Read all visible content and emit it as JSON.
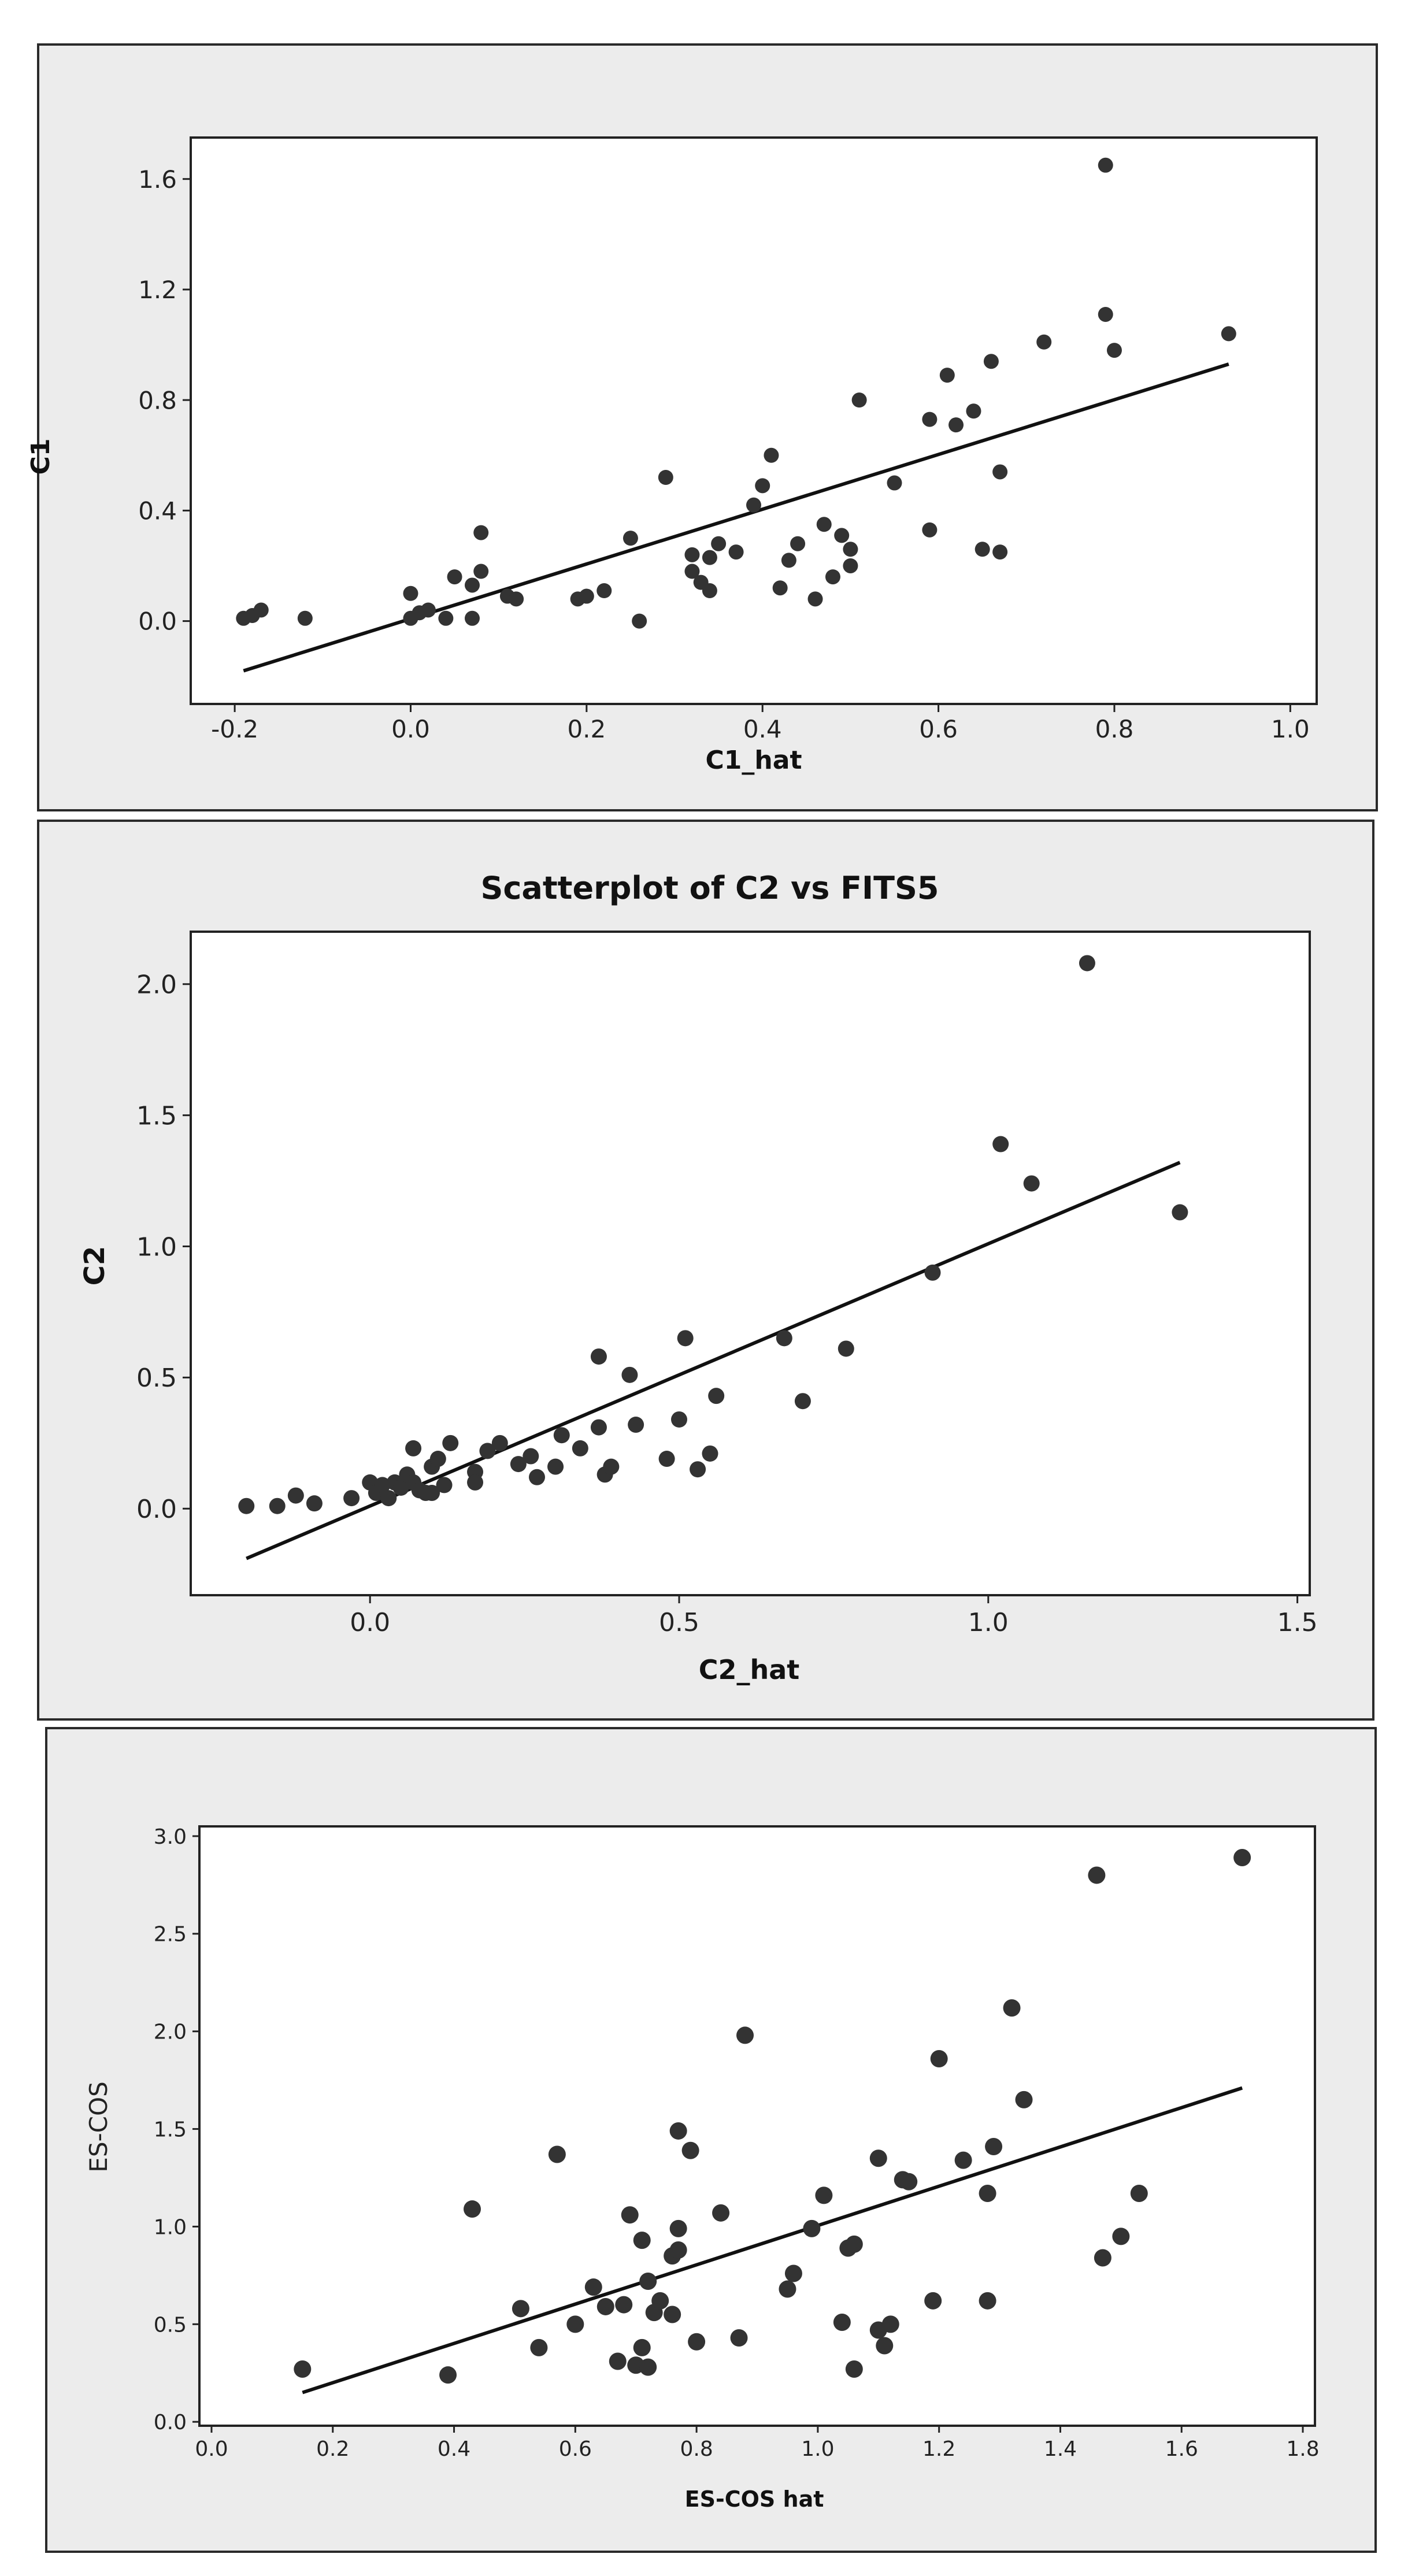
{
  "colors": {
    "panel_bg": "#ececec",
    "panel_border": "#2a2a2a",
    "plot_bg": "#ffffff",
    "point": "#333333",
    "line": "#111111"
  },
  "chart_data": [
    {
      "type": "scatter",
      "title": "",
      "xlabel": "C1_hat",
      "ylabel": "C1",
      "xlim": [
        -0.25,
        1.03
      ],
      "ylim": [
        -0.3,
        1.75
      ],
      "xticks": [
        -0.2,
        0.0,
        0.2,
        0.4,
        0.6,
        0.8,
        1.0
      ],
      "xtick_labels": [
        "-0.2",
        "0.0",
        "0.2",
        "0.4",
        "0.6",
        "0.8",
        "1.0"
      ],
      "yticks": [
        0.0,
        0.4,
        0.8,
        1.2,
        1.6
      ],
      "ytick_labels": [
        "0.0",
        "0.4",
        "0.8",
        "1.2",
        "1.6"
      ],
      "grid": false,
      "fit_line": {
        "x": [
          -0.19,
          0.93
        ],
        "y": [
          -0.18,
          0.93
        ]
      },
      "points": [
        [
          -0.19,
          0.01
        ],
        [
          -0.18,
          0.02
        ],
        [
          -0.17,
          0.04
        ],
        [
          -0.12,
          0.01
        ],
        [
          0.0,
          0.01
        ],
        [
          0.0,
          0.1
        ],
        [
          0.01,
          0.03
        ],
        [
          0.02,
          0.04
        ],
        [
          0.04,
          0.01
        ],
        [
          0.05,
          0.16
        ],
        [
          0.07,
          0.13
        ],
        [
          0.07,
          0.01
        ],
        [
          0.08,
          0.18
        ],
        [
          0.08,
          0.32
        ],
        [
          0.11,
          0.09
        ],
        [
          0.12,
          0.08
        ],
        [
          0.19,
          0.08
        ],
        [
          0.2,
          0.09
        ],
        [
          0.22,
          0.11
        ],
        [
          0.25,
          0.3
        ],
        [
          0.26,
          0.0
        ],
        [
          0.29,
          0.52
        ],
        [
          0.32,
          0.18
        ],
        [
          0.32,
          0.24
        ],
        [
          0.33,
          0.14
        ],
        [
          0.34,
          0.11
        ],
        [
          0.34,
          0.23
        ],
        [
          0.35,
          0.28
        ],
        [
          0.37,
          0.25
        ],
        [
          0.39,
          0.42
        ],
        [
          0.4,
          0.49
        ],
        [
          0.41,
          0.6
        ],
        [
          0.42,
          0.12
        ],
        [
          0.43,
          0.22
        ],
        [
          0.44,
          0.28
        ],
        [
          0.46,
          0.08
        ],
        [
          0.47,
          0.35
        ],
        [
          0.48,
          0.16
        ],
        [
          0.49,
          0.31
        ],
        [
          0.5,
          0.26
        ],
        [
          0.5,
          0.2
        ],
        [
          0.51,
          0.8
        ],
        [
          0.55,
          0.5
        ],
        [
          0.59,
          0.73
        ],
        [
          0.59,
          0.33
        ],
        [
          0.61,
          0.89
        ],
        [
          0.62,
          0.71
        ],
        [
          0.64,
          0.76
        ],
        [
          0.65,
          0.26
        ],
        [
          0.66,
          0.94
        ],
        [
          0.67,
          0.25
        ],
        [
          0.67,
          0.54
        ],
        [
          0.72,
          1.01
        ],
        [
          0.79,
          1.65
        ],
        [
          0.79,
          1.11
        ],
        [
          0.8,
          0.98
        ],
        [
          0.93,
          1.04
        ]
      ]
    },
    {
      "type": "scatter",
      "title": "Scatterplot of C2 vs FITS5",
      "xlabel": "C2_hat",
      "ylabel": "C2",
      "xlim": [
        -0.29,
        1.52
      ],
      "ylim": [
        -0.33,
        2.2
      ],
      "xticks": [
        0.0,
        0.5,
        1.0,
        1.5
      ],
      "xtick_labels": [
        "0.0",
        "0.5",
        "1.0",
        "1.5"
      ],
      "yticks": [
        0.0,
        0.5,
        1.0,
        1.5,
        2.0
      ],
      "ytick_labels": [
        "0.0",
        "0.5",
        "1.0",
        "1.5",
        "2.0"
      ],
      "grid": false,
      "fit_line": {
        "x": [
          -0.2,
          1.31
        ],
        "y": [
          -0.19,
          1.32
        ]
      },
      "points": [
        [
          -0.2,
          0.01
        ],
        [
          -0.15,
          0.01
        ],
        [
          -0.12,
          0.05
        ],
        [
          -0.09,
          0.02
        ],
        [
          -0.03,
          0.04
        ],
        [
          0.0,
          0.1
        ],
        [
          0.01,
          0.06
        ],
        [
          0.02,
          0.09
        ],
        [
          0.03,
          0.04
        ],
        [
          0.04,
          0.1
        ],
        [
          0.05,
          0.08
        ],
        [
          0.06,
          0.13
        ],
        [
          0.07,
          0.1
        ],
        [
          0.07,
          0.23
        ],
        [
          0.08,
          0.07
        ],
        [
          0.09,
          0.06
        ],
        [
          0.1,
          0.16
        ],
        [
          0.1,
          0.06
        ],
        [
          0.11,
          0.19
        ],
        [
          0.12,
          0.09
        ],
        [
          0.13,
          0.25
        ],
        [
          0.17,
          0.14
        ],
        [
          0.17,
          0.1
        ],
        [
          0.19,
          0.22
        ],
        [
          0.21,
          0.25
        ],
        [
          0.24,
          0.17
        ],
        [
          0.26,
          0.2
        ],
        [
          0.27,
          0.12
        ],
        [
          0.3,
          0.16
        ],
        [
          0.31,
          0.28
        ],
        [
          0.34,
          0.23
        ],
        [
          0.37,
          0.58
        ],
        [
          0.37,
          0.31
        ],
        [
          0.38,
          0.13
        ],
        [
          0.39,
          0.16
        ],
        [
          0.42,
          0.51
        ],
        [
          0.43,
          0.32
        ],
        [
          0.48,
          0.19
        ],
        [
          0.5,
          0.34
        ],
        [
          0.51,
          0.65
        ],
        [
          0.53,
          0.15
        ],
        [
          0.55,
          0.21
        ],
        [
          0.56,
          0.43
        ],
        [
          0.67,
          0.65
        ],
        [
          0.7,
          0.41
        ],
        [
          0.77,
          0.61
        ],
        [
          0.91,
          0.9
        ],
        [
          1.02,
          1.39
        ],
        [
          1.07,
          1.24
        ],
        [
          1.16,
          2.08
        ],
        [
          1.31,
          1.13
        ]
      ]
    },
    {
      "type": "scatter",
      "title": "",
      "xlabel": "ES-COS hat",
      "ylabel": "ES-COS",
      "xlim": [
        -0.02,
        1.82
      ],
      "ylim": [
        -0.02,
        3.05
      ],
      "xticks": [
        0.0,
        0.2,
        0.4,
        0.6,
        0.8,
        1.0,
        1.2,
        1.4,
        1.6,
        1.8
      ],
      "xtick_labels": [
        "0.0",
        "0.2",
        "0.4",
        "0.6",
        "0.8",
        "1.0",
        "1.2",
        "1.4",
        "1.6",
        "1.8"
      ],
      "yticks": [
        0.0,
        0.5,
        1.0,
        1.5,
        2.0,
        2.5,
        3.0
      ],
      "ytick_labels": [
        "0.0",
        "0.5",
        "1.0",
        "1.5",
        "2.0",
        "2.5",
        "3.0"
      ],
      "grid": false,
      "fit_line": {
        "x": [
          0.15,
          1.7
        ],
        "y": [
          0.15,
          1.71
        ]
      },
      "points": [
        [
          0.15,
          0.27
        ],
        [
          0.39,
          0.24
        ],
        [
          0.43,
          1.09
        ],
        [
          0.51,
          0.58
        ],
        [
          0.54,
          0.38
        ],
        [
          0.57,
          1.37
        ],
        [
          0.6,
          0.5
        ],
        [
          0.63,
          0.69
        ],
        [
          0.65,
          0.59
        ],
        [
          0.67,
          0.31
        ],
        [
          0.68,
          0.6
        ],
        [
          0.69,
          1.06
        ],
        [
          0.7,
          0.29
        ],
        [
          0.71,
          0.38
        ],
        [
          0.71,
          0.93
        ],
        [
          0.72,
          0.72
        ],
        [
          0.72,
          0.28
        ],
        [
          0.73,
          0.56
        ],
        [
          0.74,
          0.62
        ],
        [
          0.76,
          0.55
        ],
        [
          0.76,
          0.85
        ],
        [
          0.77,
          1.49
        ],
        [
          0.77,
          0.88
        ],
        [
          0.77,
          0.99
        ],
        [
          0.79,
          1.39
        ],
        [
          0.8,
          0.41
        ],
        [
          0.84,
          1.07
        ],
        [
          0.87,
          0.43
        ],
        [
          0.88,
          1.98
        ],
        [
          0.95,
          0.68
        ],
        [
          0.96,
          0.76
        ],
        [
          0.99,
          0.99
        ],
        [
          1.01,
          1.16
        ],
        [
          1.04,
          0.51
        ],
        [
          1.05,
          0.89
        ],
        [
          1.06,
          0.91
        ],
        [
          1.06,
          0.27
        ],
        [
          1.1,
          0.47
        ],
        [
          1.1,
          1.35
        ],
        [
          1.11,
          0.39
        ],
        [
          1.12,
          0.5
        ],
        [
          1.14,
          1.24
        ],
        [
          1.15,
          1.23
        ],
        [
          1.19,
          0.62
        ],
        [
          1.2,
          1.86
        ],
        [
          1.24,
          1.34
        ],
        [
          1.28,
          1.17
        ],
        [
          1.28,
          0.62
        ],
        [
          1.29,
          1.41
        ],
        [
          1.32,
          2.12
        ],
        [
          1.34,
          1.65
        ],
        [
          1.46,
          2.8
        ],
        [
          1.47,
          0.84
        ],
        [
          1.5,
          0.95
        ],
        [
          1.53,
          1.17
        ],
        [
          1.7,
          2.89
        ]
      ]
    }
  ]
}
